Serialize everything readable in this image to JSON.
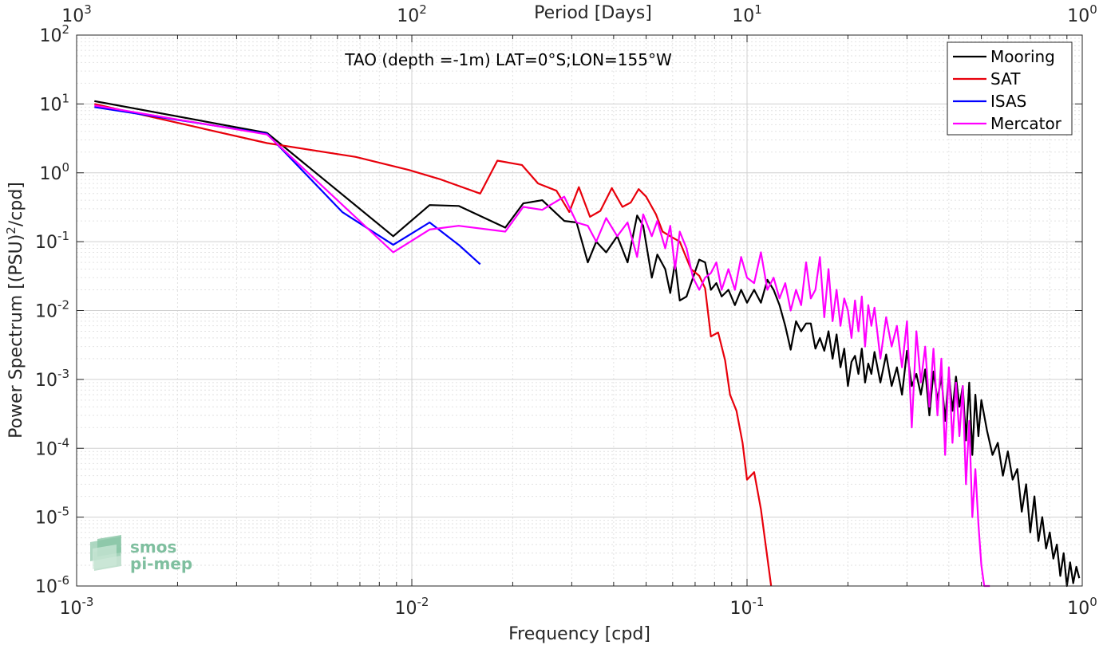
{
  "chart_data": {
    "type": "line",
    "title": "",
    "annotation": "TAO (depth =-1m) LAT=0°S;LON=155°W",
    "xlabel": "Frequency [cpd]",
    "ylabel": "Power Spectrum [(PSU)²/cpd]",
    "ylabel_parts": {
      "base": "Power Spectrum [(PSU)",
      "sup": "2",
      "tail": "/cpd]"
    },
    "x2label": "Period [Days]",
    "xscale": "log",
    "yscale": "log",
    "xlim": [
      0.001,
      1
    ],
    "ylim": [
      1e-06,
      100
    ],
    "grid": true,
    "legend_position": "top-right",
    "x_ticks": [
      {
        "value": 0.001,
        "base": "10",
        "exp": "-3"
      },
      {
        "value": 0.01,
        "base": "10",
        "exp": "-2"
      },
      {
        "value": 0.1,
        "base": "10",
        "exp": "-1"
      },
      {
        "value": 1,
        "base": "10",
        "exp": "0"
      }
    ],
    "x2_ticks": [
      {
        "value": 1000,
        "base": "10",
        "exp": "3"
      },
      {
        "value": 100,
        "base": "10",
        "exp": "2"
      },
      {
        "value": 10,
        "base": "10",
        "exp": "1"
      },
      {
        "value": 1,
        "base": "10",
        "exp": "0"
      }
    ],
    "y_ticks": [
      {
        "value": 100,
        "base": "10",
        "exp": "2"
      },
      {
        "value": 10,
        "base": "10",
        "exp": "1"
      },
      {
        "value": 1,
        "base": "10",
        "exp": "0"
      },
      {
        "value": 0.1,
        "base": "10",
        "exp": "-1"
      },
      {
        "value": 0.01,
        "base": "10",
        "exp": "-2"
      },
      {
        "value": 0.001,
        "base": "10",
        "exp": "-3"
      },
      {
        "value": 0.0001,
        "base": "10",
        "exp": "-4"
      },
      {
        "value": 1e-05,
        "base": "10",
        "exp": "-5"
      },
      {
        "value": 1e-06,
        "base": "10",
        "exp": "-6"
      }
    ],
    "series": [
      {
        "name": "Mooring",
        "color": "#000000",
        "x": [
          0.00113,
          0.0037,
          0.0088,
          0.0113,
          0.0138,
          0.019,
          0.0215,
          0.0245,
          0.0285,
          0.031,
          0.0335,
          0.0355,
          0.038,
          0.041,
          0.044,
          0.047,
          0.049,
          0.052,
          0.054,
          0.057,
          0.059,
          0.061,
          0.063,
          0.066,
          0.069,
          0.072,
          0.075,
          0.078,
          0.081,
          0.084,
          0.088,
          0.092,
          0.096,
          0.1,
          0.105,
          0.11,
          0.115,
          0.12,
          0.125,
          0.13,
          0.135,
          0.14,
          0.145,
          0.15,
          0.155,
          0.16,
          0.165,
          0.17,
          0.175,
          0.18,
          0.185,
          0.19,
          0.195,
          0.2,
          0.205,
          0.21,
          0.215,
          0.22,
          0.225,
          0.23,
          0.235,
          0.24,
          0.25,
          0.26,
          0.27,
          0.28,
          0.29,
          0.3,
          0.31,
          0.32,
          0.33,
          0.34,
          0.35,
          0.36,
          0.37,
          0.38,
          0.39,
          0.4,
          0.41,
          0.42,
          0.43,
          0.44,
          0.45,
          0.46,
          0.47,
          0.48,
          0.49,
          0.5,
          0.52,
          0.54,
          0.56,
          0.58,
          0.6,
          0.62,
          0.64,
          0.66,
          0.68,
          0.7,
          0.72,
          0.74,
          0.76,
          0.78,
          0.8,
          0.82,
          0.84,
          0.86,
          0.88,
          0.9,
          0.92,
          0.94,
          0.96,
          0.98
        ],
        "y": [
          11,
          3.8,
          0.12,
          0.34,
          0.33,
          0.16,
          0.36,
          0.4,
          0.2,
          0.19,
          0.05,
          0.1,
          0.07,
          0.12,
          0.05,
          0.24,
          0.17,
          0.03,
          0.065,
          0.04,
          0.018,
          0.05,
          0.014,
          0.016,
          0.03,
          0.055,
          0.05,
          0.02,
          0.025,
          0.016,
          0.02,
          0.012,
          0.02,
          0.013,
          0.02,
          0.013,
          0.028,
          0.02,
          0.012,
          0.006,
          0.0027,
          0.007,
          0.005,
          0.0065,
          0.0065,
          0.0028,
          0.004,
          0.0026,
          0.005,
          0.002,
          0.0045,
          0.0015,
          0.0028,
          0.0008,
          0.0018,
          0.0022,
          0.0012,
          0.0028,
          0.0009,
          0.0017,
          0.0012,
          0.0025,
          0.0009,
          0.0023,
          0.0008,
          0.0015,
          0.0006,
          0.0026,
          0.0008,
          0.0012,
          0.0006,
          0.0014,
          0.0003,
          0.0013,
          0.0005,
          0.0011,
          0.00025,
          0.0012,
          0.00035,
          0.0011,
          0.0004,
          0.0008,
          0.00013,
          0.0009,
          8e-05,
          0.0006,
          0.00015,
          0.0005,
          0.00018,
          8e-05,
          0.00012,
          4e-05,
          9e-05,
          3.5e-05,
          5e-05,
          1.2e-05,
          3e-05,
          6e-06,
          2e-05,
          4.5e-06,
          1e-05,
          3.5e-06,
          6e-06,
          2.5e-06,
          4e-06,
          1.4e-06,
          3e-06,
          9e-07,
          2.2e-06,
          1.1e-06,
          1.9e-06,
          1.3e-06
        ]
      },
      {
        "name": "SAT",
        "color": "#e8000b",
        "x": [
          0.00113,
          0.0037,
          0.0068,
          0.0098,
          0.0122,
          0.016,
          0.018,
          0.0213,
          0.0238,
          0.027,
          0.0295,
          0.0315,
          0.034,
          0.0365,
          0.0395,
          0.0425,
          0.045,
          0.0475,
          0.05,
          0.0535,
          0.056,
          0.059,
          0.063,
          0.068,
          0.072,
          0.075,
          0.078,
          0.082,
          0.086,
          0.089,
          0.093,
          0.097,
          0.1,
          0.105,
          0.11,
          0.118
        ],
        "y": [
          10,
          2.7,
          1.7,
          1.1,
          0.8,
          0.5,
          1.5,
          1.3,
          0.7,
          0.55,
          0.27,
          0.62,
          0.23,
          0.28,
          0.6,
          0.32,
          0.37,
          0.58,
          0.45,
          0.25,
          0.14,
          0.12,
          0.1,
          0.04,
          0.032,
          0.021,
          0.0042,
          0.0048,
          0.0019,
          0.0006,
          0.00035,
          0.00012,
          3.5e-05,
          4.5e-05,
          1.3e-05,
          8e-07
        ]
      },
      {
        "name": "ISAS",
        "color": "#0000ff",
        "x": [
          0.00113,
          0.0037,
          0.0062,
          0.0088,
          0.0113,
          0.0138,
          0.016
        ],
        "y": [
          9,
          3.7,
          0.27,
          0.09,
          0.19,
          0.09,
          0.047
        ]
      },
      {
        "name": "Mercator",
        "color": "#ff00ff",
        "x": [
          0.00113,
          0.0037,
          0.0088,
          0.0113,
          0.0138,
          0.019,
          0.0215,
          0.0245,
          0.0285,
          0.031,
          0.0335,
          0.0355,
          0.038,
          0.041,
          0.044,
          0.047,
          0.049,
          0.052,
          0.054,
          0.057,
          0.059,
          0.061,
          0.063,
          0.066,
          0.069,
          0.072,
          0.075,
          0.078,
          0.081,
          0.084,
          0.088,
          0.092,
          0.096,
          0.1,
          0.105,
          0.11,
          0.115,
          0.12,
          0.125,
          0.13,
          0.135,
          0.14,
          0.145,
          0.15,
          0.155,
          0.16,
          0.165,
          0.17,
          0.175,
          0.18,
          0.185,
          0.19,
          0.195,
          0.2,
          0.205,
          0.21,
          0.215,
          0.22,
          0.225,
          0.23,
          0.235,
          0.24,
          0.25,
          0.26,
          0.27,
          0.28,
          0.29,
          0.3,
          0.31,
          0.32,
          0.33,
          0.34,
          0.35,
          0.36,
          0.37,
          0.38,
          0.39,
          0.4,
          0.41,
          0.42,
          0.43,
          0.44,
          0.45,
          0.46,
          0.47,
          0.48,
          0.49,
          0.5,
          0.51,
          0.52,
          0.53
        ],
        "y": [
          9.5,
          3.6,
          0.07,
          0.15,
          0.17,
          0.14,
          0.32,
          0.29,
          0.45,
          0.19,
          0.17,
          0.1,
          0.22,
          0.12,
          0.19,
          0.06,
          0.25,
          0.12,
          0.2,
          0.08,
          0.17,
          0.04,
          0.14,
          0.08,
          0.03,
          0.02,
          0.03,
          0.035,
          0.05,
          0.02,
          0.04,
          0.02,
          0.06,
          0.03,
          0.025,
          0.07,
          0.02,
          0.03,
          0.015,
          0.025,
          0.01,
          0.02,
          0.012,
          0.05,
          0.015,
          0.02,
          0.06,
          0.008,
          0.04,
          0.007,
          0.02,
          0.006,
          0.015,
          0.01,
          0.004,
          0.014,
          0.005,
          0.016,
          0.003,
          0.012,
          0.006,
          0.011,
          0.002,
          0.008,
          0.003,
          0.006,
          0.0015,
          0.007,
          0.0002,
          0.005,
          0.0009,
          0.003,
          0.0004,
          0.0028,
          0.0003,
          0.002,
          8e-05,
          0.0015,
          0.00012,
          0.0009,
          0.00015,
          0.0008,
          3e-05,
          0.00025,
          1e-05,
          5e-05,
          8e-06,
          2e-06,
          4e-07,
          1e-06,
          3e-07
        ]
      }
    ]
  },
  "watermark": {
    "line1": "smos",
    "line2": "pi-mep"
  }
}
